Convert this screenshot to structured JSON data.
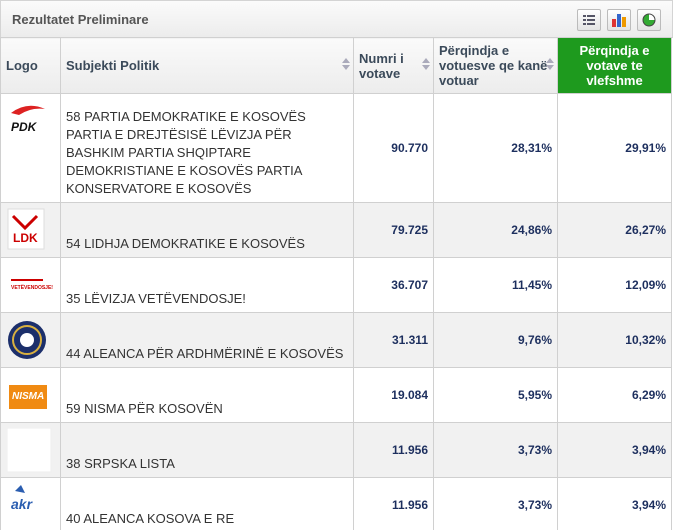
{
  "header": {
    "title": "Rezultatet Preliminare"
  },
  "table": {
    "columns": [
      "Logo",
      "Subjekti Politik",
      "Numri i votave",
      "Përqindja e votuesve qe kanë votuar",
      "Përqindja e votave te vlefshme"
    ],
    "rows": [
      {
        "logo": "PDK",
        "subject": "58 PARTIA DEMOKRATIKE E KOSOVËS PARTIA E DREJTËSISË LËVIZJA PËR BASHKIM PARTIA SHQIPTARE DEMOKRISTIANE E KOSOVËS PARTIA KONSERVATORE E KOSOVËS",
        "votes": "90.770",
        "pct_voters": "28,31%",
        "pct_valid": "29,91%"
      },
      {
        "logo": "LDK",
        "subject": "54 LIDHJA DEMOKRATIKE E KOSOVËS",
        "votes": "79.725",
        "pct_voters": "24,86%",
        "pct_valid": "26,27%"
      },
      {
        "logo": "VETËVENDOSJE!",
        "subject": "35 LËVIZJA VETËVENDOSJE!",
        "votes": "36.707",
        "pct_voters": "11,45%",
        "pct_valid": "12,09%"
      },
      {
        "subject": "44 ALEANCA PËR ARDHMËRINË E KOSOVËS",
        "votes": "31.311",
        "pct_voters": "9,76%",
        "pct_valid": "10,32%"
      },
      {
        "logo": "NISMA",
        "subject": "59 NISMA PËR KOSOVËN",
        "votes": "19.084",
        "pct_voters": "5,95%",
        "pct_valid": "6,29%"
      },
      {
        "subject": "38 SRPSKA LISTA",
        "votes": "11.956",
        "pct_voters": "3,73%",
        "pct_valid": "3,94%"
      },
      {
        "logo": "akr",
        "subject": "40 ALEANCA KOSOVA E RE",
        "votes": "11.956",
        "pct_voters": "3,73%",
        "pct_valid": "3,94%"
      }
    ]
  }
}
